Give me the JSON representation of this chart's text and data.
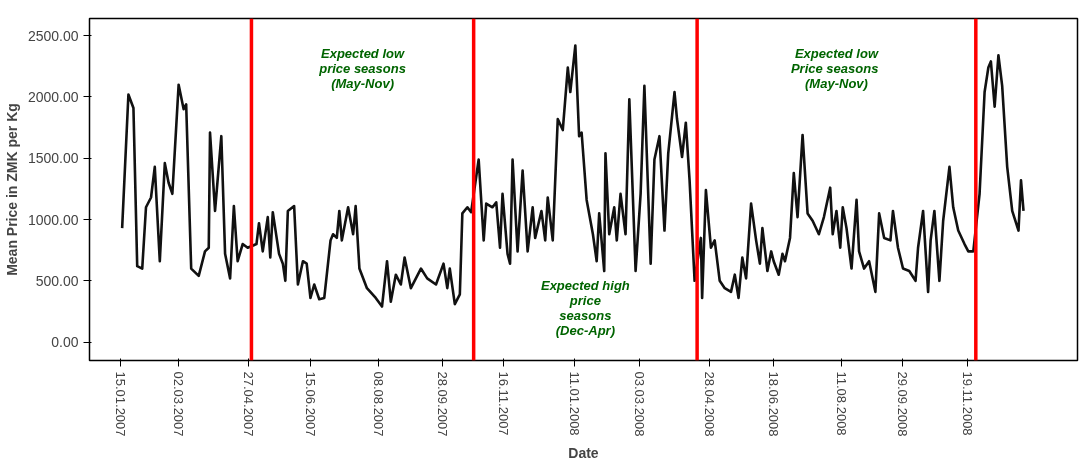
{
  "chart_data": {
    "type": "line",
    "xlabel": "Date",
    "ylabel": "Mean Price in ZMK per Kg",
    "x": [
      "2007-01-16",
      "2007-01-21",
      "2007-01-25",
      "2007-01-28",
      "2007-02-01",
      "2007-02-04",
      "2007-02-08",
      "2007-02-11",
      "2007-02-15",
      "2007-02-19",
      "2007-02-22",
      "2007-02-25",
      "2007-03-02",
      "2007-03-06",
      "2007-03-08",
      "2007-03-12",
      "2007-03-18",
      "2007-03-23",
      "2007-03-26",
      "2007-03-27",
      "2007-03-31",
      "2007-04-05",
      "2007-04-08",
      "2007-04-12",
      "2007-04-15",
      "2007-04-18",
      "2007-04-22",
      "2007-04-26",
      "2007-05-03",
      "2007-05-05",
      "2007-05-08",
      "2007-05-12",
      "2007-05-14",
      "2007-05-16",
      "2007-05-21",
      "2007-05-24",
      "2007-05-26",
      "2007-05-28",
      "2007-06-02",
      "2007-06-05",
      "2007-06-09",
      "2007-06-12",
      "2007-06-15",
      "2007-06-18",
      "2007-06-22",
      "2007-06-26",
      "2007-07-01",
      "2007-07-03",
      "2007-07-06",
      "2007-07-08",
      "2007-07-10",
      "2007-07-15",
      "2007-07-19",
      "2007-07-21",
      "2007-07-24",
      "2007-07-30",
      "2007-08-06",
      "2007-08-11",
      "2007-08-15",
      "2007-08-18",
      "2007-08-22",
      "2007-08-26",
      "2007-08-29",
      "2007-09-03",
      "2007-09-11",
      "2007-09-16",
      "2007-09-23",
      "2007-09-29",
      "2007-10-02",
      "2007-10-04",
      "2007-10-08",
      "2007-10-12",
      "2007-10-14",
      "2007-10-18",
      "2007-10-21",
      "2007-10-27",
      "2007-10-31",
      "2007-11-02",
      "2007-11-07",
      "2007-11-10",
      "2007-11-13",
      "2007-11-15",
      "2007-11-19",
      "2007-11-21",
      "2007-11-23",
      "2007-11-27",
      "2007-12-01",
      "2007-12-05",
      "2007-12-09",
      "2007-12-11",
      "2007-12-16",
      "2007-12-19",
      "2007-12-21",
      "2007-12-25",
      "2007-12-29",
      "2008-01-02",
      "2008-01-06",
      "2008-01-08",
      "2008-01-12",
      "2008-01-15",
      "2008-01-17",
      "2008-01-21",
      "2008-01-26",
      "2008-01-29",
      "2008-01-31",
      "2008-02-04",
      "2008-02-05",
      "2008-02-08",
      "2008-02-12",
      "2008-02-14",
      "2008-02-17",
      "2008-02-21",
      "2008-02-24",
      "2008-02-29",
      "2008-03-04",
      "2008-03-07",
      "2008-03-12",
      "2008-03-15",
      "2008-03-19",
      "2008-03-23",
      "2008-03-26",
      "2008-03-31",
      "2008-04-02",
      "2008-04-06",
      "2008-04-09",
      "2008-04-12",
      "2008-04-16",
      "2008-04-21",
      "2008-04-22",
      "2008-04-25",
      "2008-04-29",
      "2008-05-02",
      "2008-05-06",
      "2008-05-10",
      "2008-05-15",
      "2008-05-18",
      "2008-05-21",
      "2008-05-24",
      "2008-05-27",
      "2008-05-31",
      "2008-06-04",
      "2008-06-07",
      "2008-06-09",
      "2008-06-13",
      "2008-06-16",
      "2008-06-18",
      "2008-06-22",
      "2008-06-25",
      "2008-06-27",
      "2008-07-01",
      "2008-07-04",
      "2008-07-07",
      "2008-07-11",
      "2008-07-15",
      "2008-07-19",
      "2008-07-24",
      "2008-07-28",
      "2008-08-02",
      "2008-08-04",
      "2008-08-07",
      "2008-08-10",
      "2008-08-12",
      "2008-08-15",
      "2008-08-19",
      "2008-08-23",
      "2008-08-25",
      "2008-08-29",
      "2008-09-02",
      "2008-09-07",
      "2008-09-10",
      "2008-09-14",
      "2008-09-19",
      "2008-09-21",
      "2008-09-25",
      "2008-09-29",
      "2008-10-04",
      "2008-10-09",
      "2008-10-11",
      "2008-10-15",
      "2008-10-19",
      "2008-10-21",
      "2008-10-24",
      "2008-10-28",
      "2008-10-31",
      "2008-11-05",
      "2008-11-08",
      "2008-11-12",
      "2008-11-17",
      "2008-11-20",
      "2008-11-24",
      "2008-11-29",
      "2008-12-03",
      "2008-12-06",
      "2008-12-08",
      "2008-12-11",
      "2008-12-14",
      "2008-12-17",
      "2008-12-21",
      "2008-12-25",
      "2008-12-30",
      "2009-01-01",
      "2009-01-03"
    ],
    "series": [
      {
        "color": "#111111",
        "values": [
          930,
          2020,
          1910,
          620,
          600,
          1100,
          1180,
          1430,
          660,
          1460,
          1300,
          1210,
          2100,
          1900,
          1940,
          600,
          540,
          740,
          770,
          1710,
          1070,
          1680,
          720,
          520,
          1110,
          660,
          800,
          770,
          800,
          970,
          740,
          1020,
          690,
          1060,
          720,
          640,
          500,
          1070,
          1110,
          470,
          660,
          640,
          360,
          470,
          350,
          360,
          830,
          880,
          850,
          1070,
          830,
          1100,
          880,
          1110,
          600,
          440,
          360,
          290,
          660,
          330,
          550,
          470,
          690,
          440,
          600,
          520,
          470,
          640,
          440,
          600,
          310,
          390,
          1050,
          1100,
          1060,
          1490,
          830,
          1130,
          1100,
          1140,
          770,
          1210,
          720,
          640,
          1490,
          740,
          1400,
          740,
          1100,
          850,
          1070,
          830,
          1180,
          830,
          1820,
          1730,
          2240,
          2040,
          2420,
          1680,
          1710,
          1160,
          880,
          660,
          1050,
          580,
          1540,
          880,
          1100,
          830,
          1210,
          880,
          1980,
          580,
          1210,
          2090,
          640,
          1490,
          1680,
          910,
          1540,
          2040,
          1820,
          1510,
          1790,
          1320,
          500,
          850,
          360,
          1240,
          770,
          830,
          500,
          440,
          410,
          550,
          360,
          690,
          520,
          1130,
          830,
          640,
          930,
          580,
          740,
          660,
          550,
          720,
          660,
          850,
          1380,
          1020,
          1690,
          1050,
          990,
          880,
          1020,
          1260,
          880,
          1070,
          770,
          1100,
          930,
          600,
          1160,
          740,
          600,
          660,
          410,
          1050,
          850,
          830,
          1070,
          770,
          600,
          580,
          500,
          770,
          1070,
          410,
          830,
          1070,
          500,
          990,
          1430,
          1100,
          910,
          800,
          740,
          740,
          1210,
          2040,
          2240,
          2290,
          1920,
          2340,
          2090,
          1430,
          1070,
          910,
          1320,
          1070
        ]
      }
    ],
    "xlim": [
      "2006-12-21",
      "2009-02-15"
    ],
    "xticks": [
      {
        "value": "2007-01-15",
        "label": "15.01.2007"
      },
      {
        "value": "2007-03-02",
        "label": "02.03.2007"
      },
      {
        "value": "2007-04-27",
        "label": "27.04.2007"
      },
      {
        "value": "2007-06-15",
        "label": "15.06.2007"
      },
      {
        "value": "2007-08-08",
        "label": "08.08.2007"
      },
      {
        "value": "2007-09-28",
        "label": "28.09.2007"
      },
      {
        "value": "2007-11-16",
        "label": "16.11.2007"
      },
      {
        "value": "2008-01-11",
        "label": "11.01.2008"
      },
      {
        "value": "2008-03-03",
        "label": "03.03.2008"
      },
      {
        "value": "2008-04-28",
        "label": "28.04.2008"
      },
      {
        "value": "2008-06-18",
        "label": "18.06.2008"
      },
      {
        "value": "2008-08-11",
        "label": "11.08.2008"
      },
      {
        "value": "2008-09-29",
        "label": "29.09.2008"
      },
      {
        "value": "2008-11-19",
        "label": "19.11.2008"
      }
    ],
    "ylim": [
      -150,
      2640
    ],
    "yticks": [
      {
        "value": 0,
        "label": "0.00"
      },
      {
        "value": 500,
        "label": "500.00"
      },
      {
        "value": 1000,
        "label": "1000.00"
      },
      {
        "value": 1500,
        "label": "1500.00"
      },
      {
        "value": 2000,
        "label": "2000.00"
      },
      {
        "value": 2500,
        "label": "2500.00"
      }
    ],
    "grid": false,
    "ref_lines": [
      {
        "axis": "x",
        "value": "2007-04-29",
        "color": "#ff0000"
      },
      {
        "axis": "x",
        "value": "2007-10-23",
        "color": "#ff0000"
      },
      {
        "axis": "x",
        "value": "2008-04-18",
        "color": "#ff0000"
      },
      {
        "axis": "x",
        "value": "2008-11-26",
        "color": "#ff0000"
      }
    ],
    "annotations": [
      "Expected low\nprice seasons\n(May-Nov)",
      "Expected high\nprice\nseasons\n(Dec-Apr)",
      "Expected low\nPrice  seasons\n(May-Nov)"
    ]
  }
}
